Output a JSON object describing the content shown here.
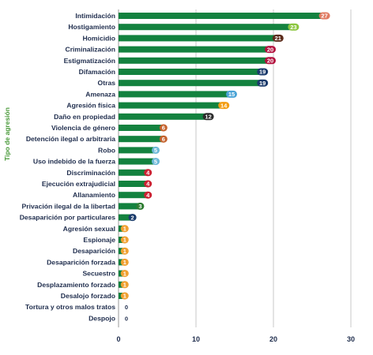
{
  "chart_data": {
    "type": "bar",
    "orientation": "horizontal",
    "ylabel": "Tipo de agresión",
    "xlim": [
      0,
      30
    ],
    "xticks": [
      0,
      10,
      20,
      30
    ],
    "grid": true,
    "bar_color": "#13823f",
    "label_color": "#1f2d4d",
    "ylabel_color": "#4a9a3a",
    "categories": [
      "Intimidación",
      "Hostigamiento",
      "Homicidio",
      "Criminalización",
      "Estigmatización",
      "Difamación",
      "Otras",
      "Amenaza",
      "Agresión física",
      "Daño en propiedad",
      "Violencia de género",
      "Detención ilegal o arbitraria",
      "Robo",
      "Uso indebido de la fuerza",
      "Discriminación",
      "Ejecución extrajudicial",
      "Allanamiento",
      "Privación ilegal de la libertad",
      "Desaparición por particulares",
      "Agresión sexual",
      "Espionaje",
      "Desaparición",
      "Desaparición forzada",
      "Secuestro",
      "Desplazamiento forzado",
      "Desalojo forzado",
      "Tortura y otros malos tratos",
      "Despojo"
    ],
    "values": [
      27,
      23,
      21,
      20,
      20,
      19,
      19,
      15,
      14,
      12,
      6,
      6,
      5,
      5,
      4,
      4,
      4,
      3,
      2,
      1,
      1,
      1,
      1,
      1,
      1,
      1,
      0,
      0
    ],
    "badge_colors": [
      "#e07b62",
      "#8cc63f",
      "#5b2b1a",
      "#b3123f",
      "#b3123f",
      "#1a3a6b",
      "#1a3a6b",
      "#4aa3d6",
      "#f39c12",
      "#2b2b2b",
      "#c4622d",
      "#c4622d",
      "#6bb8d8",
      "#6bb8d8",
      "#cc2233",
      "#cc2233",
      "#cc2233",
      "#2e7d32",
      "#1a3a6b",
      "#f0a030",
      "#f0a030",
      "#f0a030",
      "#f0a030",
      "#f0a030",
      "#f0a030",
      "#f0a030",
      "#ffffff",
      "#ffffff"
    ]
  }
}
